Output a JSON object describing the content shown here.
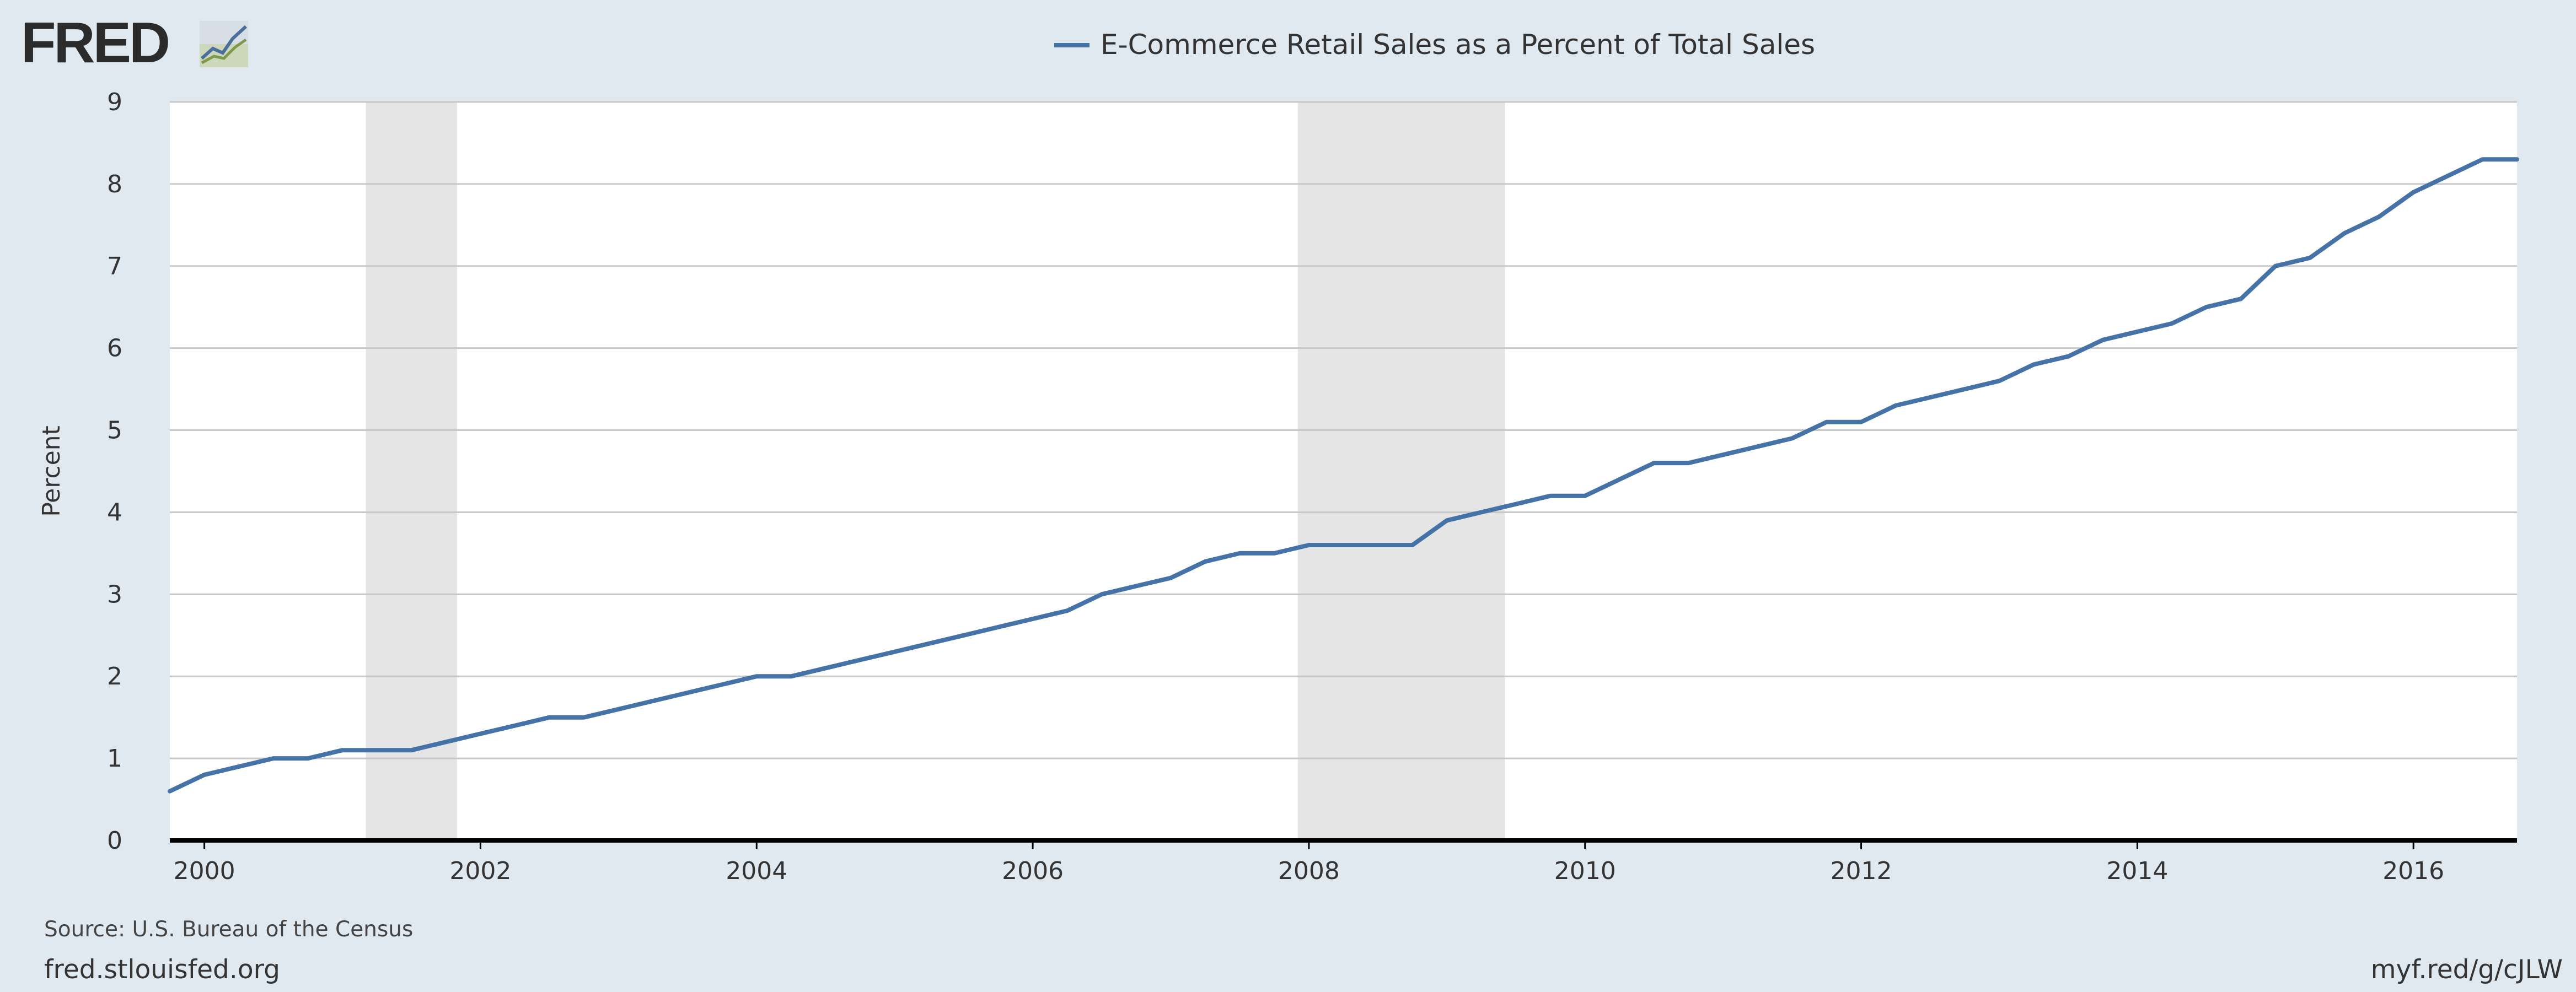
{
  "brand": {
    "logo_text": "FRED"
  },
  "footer": {
    "source": "Source: U.S. Bureau of the Census",
    "site": "fred.stlouisfed.org",
    "shortlink": "myf.red/g/cJLW"
  },
  "colors": {
    "series": "#4572a7",
    "recession": "#e5e5e5",
    "grid": "#c8c8c8",
    "background": "#e1e9f0"
  },
  "chart_data": {
    "type": "line",
    "legend": "E-Commerce Retail Sales as a Percent of Total Sales",
    "ylabel": "Percent",
    "xlabel": "",
    "ylim": [
      0,
      9
    ],
    "xlim": [
      1999.75,
      2016.75
    ],
    "y_ticks": [
      "0",
      "1",
      "2",
      "3",
      "4",
      "5",
      "6",
      "7",
      "8",
      "9"
    ],
    "x_ticks": [
      "2000",
      "2002",
      "2004",
      "2006",
      "2008",
      "2010",
      "2012",
      "2014",
      "2016"
    ],
    "grid": true,
    "recessions": [
      [
        2001.17,
        2001.83
      ],
      [
        2007.92,
        2009.42
      ]
    ],
    "series": [
      {
        "name": "E-Commerce Retail Sales as a Percent of Total Sales",
        "x": [
          1999.75,
          2000.0,
          2000.25,
          2000.5,
          2000.75,
          2001.0,
          2001.25,
          2001.5,
          2001.75,
          2002.0,
          2002.25,
          2002.5,
          2002.75,
          2003.0,
          2003.25,
          2003.5,
          2003.75,
          2004.0,
          2004.25,
          2004.5,
          2004.75,
          2005.0,
          2005.25,
          2005.5,
          2005.75,
          2006.0,
          2006.25,
          2006.5,
          2006.75,
          2007.0,
          2007.25,
          2007.5,
          2007.75,
          2008.0,
          2008.25,
          2008.5,
          2008.75,
          2009.0,
          2009.25,
          2009.5,
          2009.75,
          2010.0,
          2010.25,
          2010.5,
          2010.75,
          2011.0,
          2011.25,
          2011.5,
          2011.75,
          2012.0,
          2012.25,
          2012.5,
          2012.75,
          2013.0,
          2013.25,
          2013.5,
          2013.75,
          2014.0,
          2014.25,
          2014.5,
          2014.75,
          2015.0,
          2015.25,
          2015.5,
          2015.75,
          2016.0,
          2016.25,
          2016.5,
          2016.75
        ],
        "values": [
          0.6,
          0.8,
          0.9,
          1.0,
          1.0,
          1.1,
          1.1,
          1.1,
          1.2,
          1.3,
          1.4,
          1.5,
          1.5,
          1.6,
          1.7,
          1.8,
          1.9,
          2.0,
          2.0,
          2.1,
          2.2,
          2.3,
          2.4,
          2.5,
          2.6,
          2.7,
          2.8,
          3.0,
          3.1,
          3.2,
          3.4,
          3.5,
          3.5,
          3.6,
          3.6,
          3.6,
          3.6,
          3.9,
          4.0,
          4.1,
          4.2,
          4.2,
          4.4,
          4.6,
          4.6,
          4.7,
          4.8,
          4.9,
          5.1,
          5.1,
          5.3,
          5.4,
          5.5,
          5.6,
          5.8,
          5.9,
          6.1,
          6.2,
          6.3,
          6.5,
          6.6,
          7.0,
          7.1,
          7.4,
          7.6,
          7.9,
          8.1,
          8.3,
          8.3
        ]
      }
    ]
  }
}
